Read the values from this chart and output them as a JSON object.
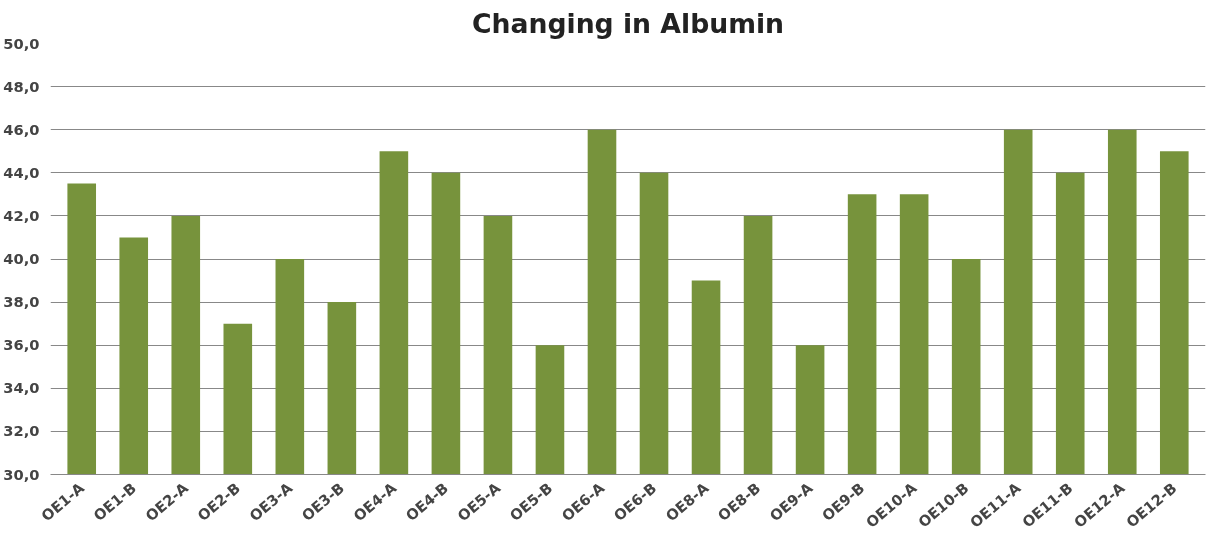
{
  "chart_data": {
    "type": "bar",
    "title": "Changing in Albumin",
    "categories": [
      "OE1-A",
      "OE1-B",
      "OE2-A",
      "OE2-B",
      "OE3-A",
      "OE3-B",
      "OE4-A",
      "OE4-B",
      "OE5-A",
      "OE5-B",
      "OE6-A",
      "OE6-B",
      "OE8-A",
      "OE8-B",
      "OE9-A",
      "OE9-B",
      "OE10-A",
      "OE10-B",
      "OE11-A",
      "OE11-B",
      "OE12-A",
      "OE12-B"
    ],
    "values": [
      43.5,
      41,
      42,
      37,
      40,
      38,
      45,
      44,
      42,
      36,
      46,
      44,
      39,
      42,
      36,
      43,
      43,
      40,
      46,
      44,
      46,
      45
    ],
    "color": "#77933c",
    "ylim": [
      30,
      50
    ],
    "yticks": [
      {
        "value": 30,
        "label": "30,0"
      },
      {
        "value": 32,
        "label": "32,0"
      },
      {
        "value": 34,
        "label": "34,0"
      },
      {
        "value": 36,
        "label": "36,0"
      },
      {
        "value": 38,
        "label": "38,0"
      },
      {
        "value": 40,
        "label": "40,0"
      },
      {
        "value": 42,
        "label": "42,0"
      },
      {
        "value": 44,
        "label": "44,0"
      },
      {
        "value": 46,
        "label": "46,0"
      },
      {
        "value": 48,
        "label": "48,0"
      },
      {
        "value": 50,
        "label": "50,0"
      }
    ],
    "grid": "y"
  }
}
